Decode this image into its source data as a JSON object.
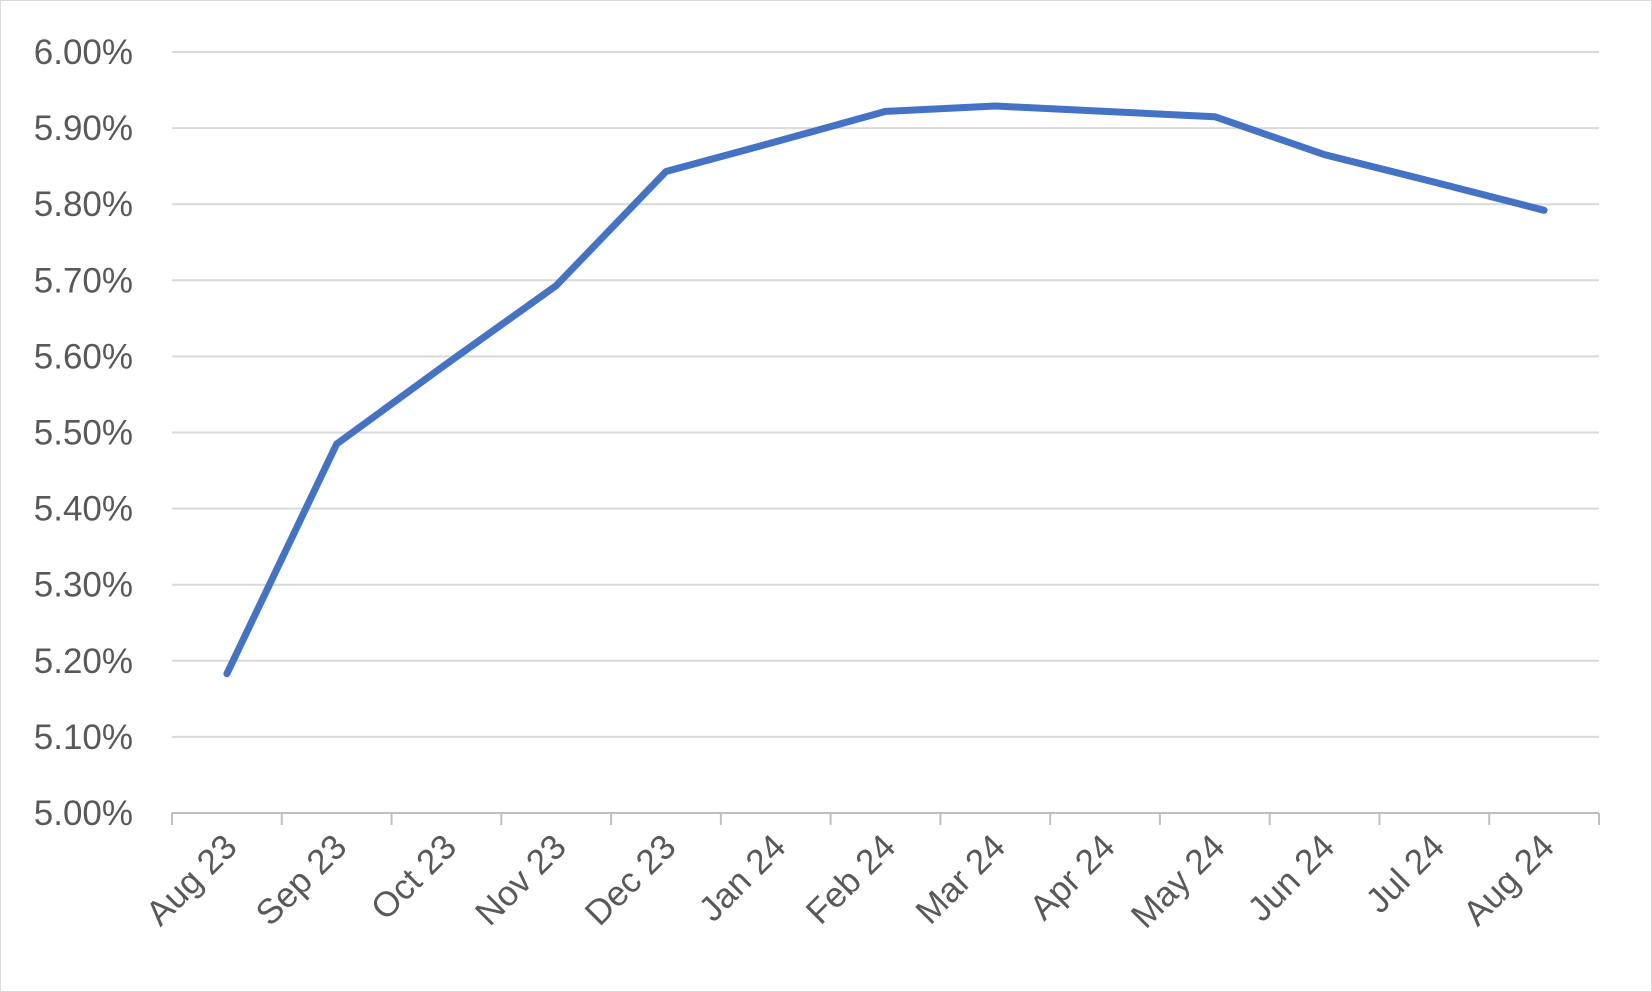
{
  "chart_data": {
    "type": "line",
    "title": "",
    "xlabel": "",
    "ylabel": "",
    "categories": [
      "Aug 23",
      "Sep 23",
      "Oct 23",
      "Nov 23",
      "Dec 23",
      "Jan 24",
      "Feb 24",
      "Mar 24",
      "Apr 24",
      "May 24",
      "Jun 24",
      "Jul 24",
      "Aug 24"
    ],
    "series": [
      {
        "values": [
          5.183,
          5.485,
          5.59,
          5.693,
          5.843,
          5.882,
          5.922,
          5.929,
          5.922,
          5.915,
          5.865,
          5.829,
          5.792
        ],
        "color": "#4472C4"
      }
    ],
    "ylim": [
      5.0,
      6.0
    ],
    "y_ticks": [
      "5.00%",
      "5.10%",
      "5.20%",
      "5.30%",
      "5.40%",
      "5.50%",
      "5.60%",
      "5.70%",
      "5.80%",
      "5.90%",
      "6.00%"
    ],
    "y_tick_values": [
      5.0,
      5.1,
      5.2,
      5.3,
      5.4,
      5.5,
      5.6,
      5.7,
      5.8,
      5.9,
      6.0
    ],
    "grid": true,
    "legend": "none",
    "colors": {
      "gridline": "#d9d9d9",
      "axis": "#bfbfbf",
      "text": "#595959",
      "series": "#4472C4"
    }
  }
}
